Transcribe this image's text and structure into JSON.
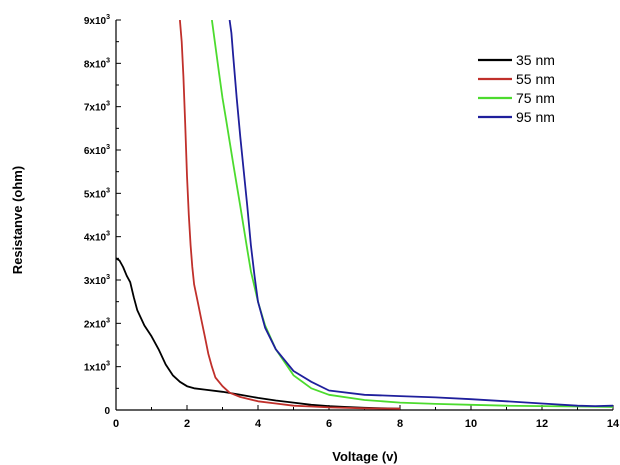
{
  "chart_data": {
    "type": "line",
    "xlabel": "Voltage (v)",
    "ylabel": "Resistanve (ohm)",
    "xlim": [
      0,
      14
    ],
    "ylim": [
      0,
      9000
    ],
    "x_ticks": [
      0,
      2,
      4,
      6,
      8,
      10,
      12,
      14
    ],
    "x_tick_labels": [
      "0",
      "2",
      "4",
      "6",
      "8",
      "10",
      "12",
      "14"
    ],
    "y_ticks": [
      0,
      1000,
      2000,
      3000,
      4000,
      5000,
      6000,
      7000,
      8000,
      9000
    ],
    "y_tick_labels": [
      {
        "base": "0",
        "exp": ""
      },
      {
        "base": "1x10",
        "exp": "3"
      },
      {
        "base": "2x10",
        "exp": "3"
      },
      {
        "base": "3x10",
        "exp": "3"
      },
      {
        "base": "4x10",
        "exp": "3"
      },
      {
        "base": "5x10",
        "exp": "3"
      },
      {
        "base": "6x10",
        "exp": "3"
      },
      {
        "base": "7x10",
        "exp": "3"
      },
      {
        "base": "8x10",
        "exp": "3"
      },
      {
        "base": "9x10",
        "exp": "3"
      }
    ],
    "grid": false,
    "legend_position": "top-right",
    "series": [
      {
        "name": "35 nm",
        "color": "#000000",
        "x": [
          0,
          0.1,
          0.2,
          0.3,
          0.4,
          0.5,
          0.6,
          0.8,
          1.0,
          1.2,
          1.4,
          1.6,
          1.8,
          2.0,
          2.2,
          2.5,
          3.0,
          3.5,
          4.0,
          4.5,
          5.0,
          5.5,
          6.0,
          6.5,
          7.0,
          7.5,
          8.0
        ],
        "y": [
          3500,
          3450,
          3300,
          3100,
          2950,
          2600,
          2300,
          1950,
          1700,
          1400,
          1050,
          800,
          650,
          550,
          500,
          470,
          420,
          350,
          280,
          220,
          170,
          120,
          90,
          70,
          50,
          40,
          30
        ]
      },
      {
        "name": "55 nm",
        "color": "#c0302b",
        "x": [
          1.8,
          1.85,
          1.9,
          1.95,
          2.0,
          2.05,
          2.1,
          2.15,
          2.2,
          2.3,
          2.4,
          2.5,
          2.6,
          2.7,
          2.8,
          3.0,
          3.2,
          3.5,
          4.0,
          4.5,
          5.0,
          5.5,
          6.0,
          7.0,
          8.0
        ],
        "y": [
          9000,
          8500,
          7700,
          6600,
          5400,
          4500,
          3800,
          3300,
          2900,
          2500,
          2100,
          1700,
          1300,
          1000,
          750,
          550,
          400,
          300,
          200,
          150,
          100,
          80,
          60,
          40,
          30
        ]
      },
      {
        "name": "75 nm",
        "color": "#4cdb2e",
        "x": [
          2.7,
          2.8,
          2.9,
          3.0,
          3.1,
          3.2,
          3.3,
          3.4,
          3.5,
          3.6,
          3.7,
          3.8,
          4.0,
          4.2,
          4.5,
          5.0,
          5.5,
          6.0,
          7.0,
          8.0,
          9.0,
          10.0,
          11.0,
          12.0,
          13.0,
          14.0
        ],
        "y": [
          9000,
          8400,
          7800,
          7200,
          6700,
          6200,
          5700,
          5200,
          4700,
          4200,
          3700,
          3200,
          2500,
          1950,
          1400,
          800,
          500,
          350,
          230,
          170,
          140,
          120,
          100,
          90,
          80,
          70
        ]
      },
      {
        "name": "95 nm",
        "color": "#1f1f9c",
        "x": [
          3.2,
          3.25,
          3.3,
          3.4,
          3.5,
          3.6,
          3.7,
          3.8,
          3.9,
          4.0,
          4.2,
          4.5,
          5.0,
          5.5,
          6.0,
          7.0,
          8.0,
          9.0,
          10.0,
          11.0,
          12.0,
          13.0,
          13.5,
          14.0
        ],
        "y": [
          9000,
          8700,
          8200,
          7200,
          6300,
          5500,
          4700,
          3800,
          3100,
          2500,
          1900,
          1400,
          900,
          650,
          450,
          350,
          320,
          290,
          250,
          200,
          150,
          100,
          90,
          100
        ]
      }
    ]
  }
}
